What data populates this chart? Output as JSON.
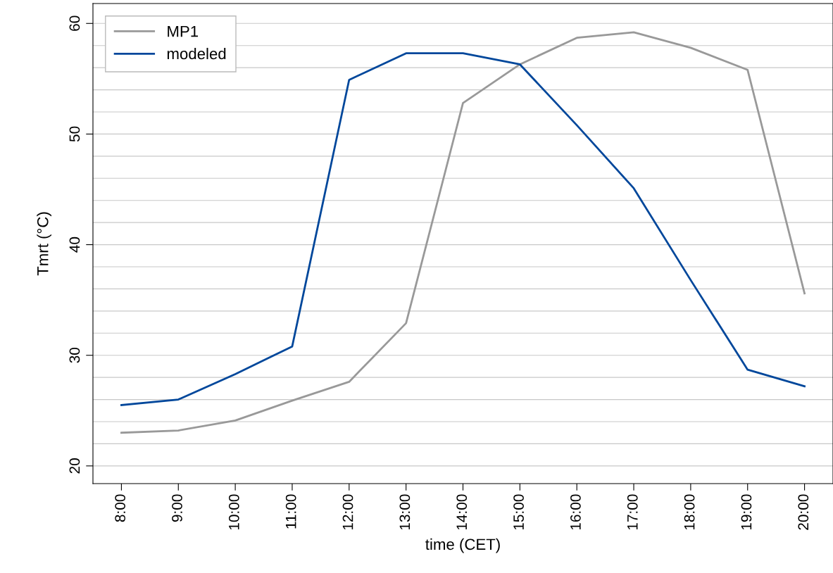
{
  "chart_data": {
    "type": "line",
    "xlabel": "time (CET)",
    "ylabel": "Tmrt (°C)",
    "categories": [
      "8:00",
      "9:00",
      "10:00",
      "11:00",
      "12:00",
      "13:00",
      "14:00",
      "15:00",
      "16:00",
      "17:00",
      "18:00",
      "19:00",
      "20:00"
    ],
    "series": [
      {
        "name": "MP1",
        "color": "#999999",
        "values": [
          23.0,
          23.2,
          24.1,
          25.9,
          27.6,
          32.9,
          52.8,
          56.3,
          58.7,
          59.2,
          57.8,
          55.8,
          35.6
        ]
      },
      {
        "name": "modeled",
        "color": "#00479b",
        "values": [
          25.5,
          26.0,
          28.3,
          30.8,
          54.9,
          57.3,
          57.3,
          56.3,
          50.8,
          45.1,
          36.8,
          28.7,
          27.2
        ]
      }
    ],
    "ylim": [
      18.4,
      61.8
    ],
    "yticks": [
      20,
      {
        "value": 22,
        "label": null
      },
      {
        "value": 24,
        "label": null
      },
      {
        "value": 26,
        "label": null
      },
      {
        "value": 28,
        "label": null
      },
      30,
      {
        "value": 32,
        "label": null
      },
      {
        "value": 34,
        "label": null
      },
      {
        "value": 36,
        "label": null
      },
      {
        "value": 38,
        "label": null
      },
      40,
      {
        "value": 42,
        "label": null
      },
      {
        "value": 44,
        "label": null
      },
      {
        "value": 46,
        "label": null
      },
      {
        "value": 48,
        "label": null
      },
      50,
      {
        "value": 52,
        "label": null
      },
      {
        "value": 54,
        "label": null
      },
      {
        "value": 56,
        "label": null
      },
      {
        "value": 58,
        "label": null
      },
      60
    ],
    "grid": "y",
    "legend": "top left",
    "line_style": "solid",
    "marker": "none"
  }
}
